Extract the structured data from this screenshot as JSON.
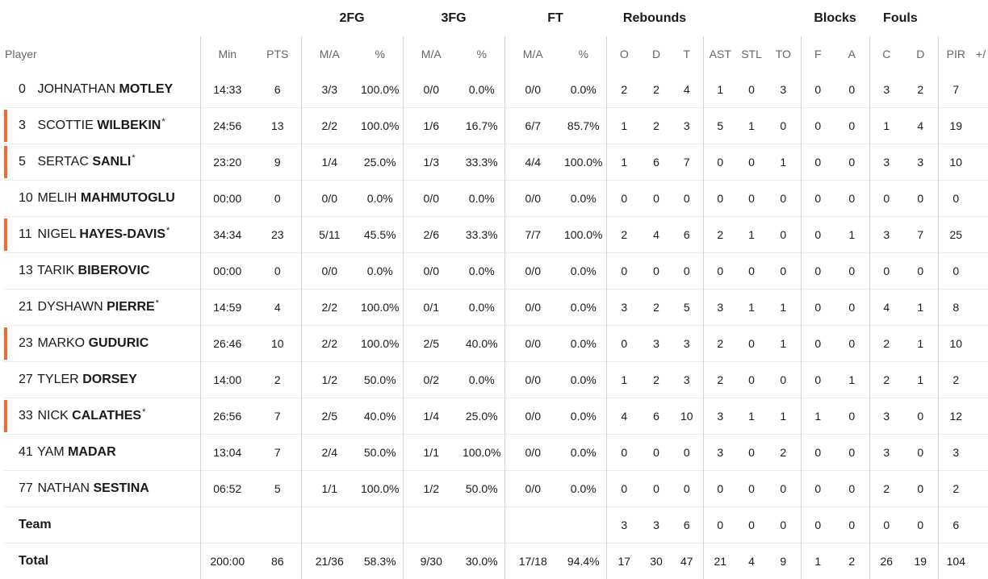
{
  "groups": {
    "fg2": "2FG",
    "fg3": "3FG",
    "ft": "FT",
    "rebounds": "Rebounds",
    "blocks": "Blocks",
    "fouls": "Fouls"
  },
  "columns": {
    "player": "Player",
    "min": "Min",
    "pts": "PTS",
    "fg2_ma": "M/A",
    "fg2_pct": "%",
    "fg3_ma": "M/A",
    "fg3_pct": "%",
    "ft_ma": "M/A",
    "ft_pct": "%",
    "reb_o": "O",
    "reb_d": "D",
    "reb_t": "T",
    "ast": "AST",
    "stl": "STL",
    "to": "TO",
    "blk_f": "F",
    "blk_a": "A",
    "foul_c": "C",
    "foul_d": "D",
    "pir": "PIR",
    "pm": "+/"
  },
  "starter_color": "#f26a2e",
  "players": [
    {
      "num": "0",
      "first": "JOHNATHAN",
      "last": "MOTLEY",
      "star": "",
      "starter": false,
      "min": "14:33",
      "pts": "6",
      "fg2_ma": "3/3",
      "fg2_pct": "100.0%",
      "fg3_ma": "0/0",
      "fg3_pct": "0.0%",
      "ft_ma": "0/0",
      "ft_pct": "0.0%",
      "reb_o": "2",
      "reb_d": "2",
      "reb_t": "4",
      "ast": "1",
      "stl": "0",
      "to": "3",
      "blk_f": "0",
      "blk_a": "0",
      "foul_c": "3",
      "foul_d": "2",
      "pir": "7"
    },
    {
      "num": "3",
      "first": "SCOTTIE",
      "last": "WILBEKIN",
      "star": "*",
      "starter": true,
      "min": "24:56",
      "pts": "13",
      "fg2_ma": "2/2",
      "fg2_pct": "100.0%",
      "fg3_ma": "1/6",
      "fg3_pct": "16.7%",
      "ft_ma": "6/7",
      "ft_pct": "85.7%",
      "reb_o": "1",
      "reb_d": "2",
      "reb_t": "3",
      "ast": "5",
      "stl": "1",
      "to": "0",
      "blk_f": "0",
      "blk_a": "0",
      "foul_c": "1",
      "foul_d": "4",
      "pir": "19"
    },
    {
      "num": "5",
      "first": "SERTAC",
      "last": "SANLI",
      "star": "*",
      "starter": true,
      "min": "23:20",
      "pts": "9",
      "fg2_ma": "1/4",
      "fg2_pct": "25.0%",
      "fg3_ma": "1/3",
      "fg3_pct": "33.3%",
      "ft_ma": "4/4",
      "ft_pct": "100.0%",
      "reb_o": "1",
      "reb_d": "6",
      "reb_t": "7",
      "ast": "0",
      "stl": "0",
      "to": "1",
      "blk_f": "0",
      "blk_a": "0",
      "foul_c": "3",
      "foul_d": "3",
      "pir": "10"
    },
    {
      "num": "10",
      "first": "MELIH",
      "last": "MAHMUTOGLU",
      "star": "",
      "starter": false,
      "min": "00:00",
      "pts": "0",
      "fg2_ma": "0/0",
      "fg2_pct": "0.0%",
      "fg3_ma": "0/0",
      "fg3_pct": "0.0%",
      "ft_ma": "0/0",
      "ft_pct": "0.0%",
      "reb_o": "0",
      "reb_d": "0",
      "reb_t": "0",
      "ast": "0",
      "stl": "0",
      "to": "0",
      "blk_f": "0",
      "blk_a": "0",
      "foul_c": "0",
      "foul_d": "0",
      "pir": "0"
    },
    {
      "num": "11",
      "first": "NIGEL",
      "last": "HAYES-DAVIS",
      "star": "*",
      "starter": true,
      "min": "34:34",
      "pts": "23",
      "fg2_ma": "5/11",
      "fg2_pct": "45.5%",
      "fg3_ma": "2/6",
      "fg3_pct": "33.3%",
      "ft_ma": "7/7",
      "ft_pct": "100.0%",
      "reb_o": "2",
      "reb_d": "4",
      "reb_t": "6",
      "ast": "2",
      "stl": "1",
      "to": "0",
      "blk_f": "0",
      "blk_a": "1",
      "foul_c": "3",
      "foul_d": "7",
      "pir": "25"
    },
    {
      "num": "13",
      "first": "TARIK",
      "last": "BIBEROVIC",
      "star": "",
      "starter": false,
      "min": "00:00",
      "pts": "0",
      "fg2_ma": "0/0",
      "fg2_pct": "0.0%",
      "fg3_ma": "0/0",
      "fg3_pct": "0.0%",
      "ft_ma": "0/0",
      "ft_pct": "0.0%",
      "reb_o": "0",
      "reb_d": "0",
      "reb_t": "0",
      "ast": "0",
      "stl": "0",
      "to": "0",
      "blk_f": "0",
      "blk_a": "0",
      "foul_c": "0",
      "foul_d": "0",
      "pir": "0"
    },
    {
      "num": "21",
      "first": "DYSHAWN",
      "last": "PIERRE",
      "star": "*",
      "starter": false,
      "min": "14:59",
      "pts": "4",
      "fg2_ma": "2/2",
      "fg2_pct": "100.0%",
      "fg3_ma": "0/1",
      "fg3_pct": "0.0%",
      "ft_ma": "0/0",
      "ft_pct": "0.0%",
      "reb_o": "3",
      "reb_d": "2",
      "reb_t": "5",
      "ast": "3",
      "stl": "1",
      "to": "1",
      "blk_f": "0",
      "blk_a": "0",
      "foul_c": "4",
      "foul_d": "1",
      "pir": "8"
    },
    {
      "num": "23",
      "first": "MARKO",
      "last": "GUDURIC",
      "star": "",
      "starter": true,
      "min": "26:46",
      "pts": "10",
      "fg2_ma": "2/2",
      "fg2_pct": "100.0%",
      "fg3_ma": "2/5",
      "fg3_pct": "40.0%",
      "ft_ma": "0/0",
      "ft_pct": "0.0%",
      "reb_o": "0",
      "reb_d": "3",
      "reb_t": "3",
      "ast": "2",
      "stl": "0",
      "to": "1",
      "blk_f": "0",
      "blk_a": "0",
      "foul_c": "2",
      "foul_d": "1",
      "pir": "10"
    },
    {
      "num": "27",
      "first": "TYLER",
      "last": "DORSEY",
      "star": "",
      "starter": false,
      "min": "14:00",
      "pts": "2",
      "fg2_ma": "1/2",
      "fg2_pct": "50.0%",
      "fg3_ma": "0/2",
      "fg3_pct": "0.0%",
      "ft_ma": "0/0",
      "ft_pct": "0.0%",
      "reb_o": "1",
      "reb_d": "2",
      "reb_t": "3",
      "ast": "2",
      "stl": "0",
      "to": "0",
      "blk_f": "0",
      "blk_a": "1",
      "foul_c": "2",
      "foul_d": "1",
      "pir": "2"
    },
    {
      "num": "33",
      "first": "NICK",
      "last": "CALATHES",
      "star": "*",
      "starter": true,
      "min": "26:56",
      "pts": "7",
      "fg2_ma": "2/5",
      "fg2_pct": "40.0%",
      "fg3_ma": "1/4",
      "fg3_pct": "25.0%",
      "ft_ma": "0/0",
      "ft_pct": "0.0%",
      "reb_o": "4",
      "reb_d": "6",
      "reb_t": "10",
      "ast": "3",
      "stl": "1",
      "to": "1",
      "blk_f": "1",
      "blk_a": "0",
      "foul_c": "3",
      "foul_d": "0",
      "pir": "12"
    },
    {
      "num": "41",
      "first": "YAM",
      "last": "MADAR",
      "star": "",
      "starter": false,
      "min": "13:04",
      "pts": "7",
      "fg2_ma": "2/4",
      "fg2_pct": "50.0%",
      "fg3_ma": "1/1",
      "fg3_pct": "100.0%",
      "ft_ma": "0/0",
      "ft_pct": "0.0%",
      "reb_o": "0",
      "reb_d": "0",
      "reb_t": "0",
      "ast": "3",
      "stl": "0",
      "to": "2",
      "blk_f": "0",
      "blk_a": "0",
      "foul_c": "3",
      "foul_d": "0",
      "pir": "3"
    },
    {
      "num": "77",
      "first": "NATHAN",
      "last": "SESTINA",
      "star": "",
      "starter": false,
      "min": "06:52",
      "pts": "5",
      "fg2_ma": "1/1",
      "fg2_pct": "100.0%",
      "fg3_ma": "1/2",
      "fg3_pct": "50.0%",
      "ft_ma": "0/0",
      "ft_pct": "0.0%",
      "reb_o": "0",
      "reb_d": "0",
      "reb_t": "0",
      "ast": "0",
      "stl": "0",
      "to": "0",
      "blk_f": "0",
      "blk_a": "0",
      "foul_c": "2",
      "foul_d": "0",
      "pir": "2"
    }
  ],
  "team": {
    "label": "Team",
    "min": "",
    "pts": "",
    "fg2_ma": "",
    "fg2_pct": "",
    "fg3_ma": "",
    "fg3_pct": "",
    "ft_ma": "",
    "ft_pct": "",
    "reb_o": "3",
    "reb_d": "3",
    "reb_t": "6",
    "ast": "0",
    "stl": "0",
    "to": "0",
    "blk_f": "0",
    "blk_a": "0",
    "foul_c": "0",
    "foul_d": "0",
    "pir": "6"
  },
  "total": {
    "label": "Total",
    "min": "200:00",
    "pts": "86",
    "fg2_ma": "21/36",
    "fg2_pct": "58.3%",
    "fg3_ma": "9/30",
    "fg3_pct": "30.0%",
    "ft_ma": "17/18",
    "ft_pct": "94.4%",
    "reb_o": "17",
    "reb_d": "30",
    "reb_t": "47",
    "ast": "21",
    "stl": "4",
    "to": "9",
    "blk_f": "1",
    "blk_a": "2",
    "foul_c": "26",
    "foul_d": "19",
    "pir": "104"
  }
}
